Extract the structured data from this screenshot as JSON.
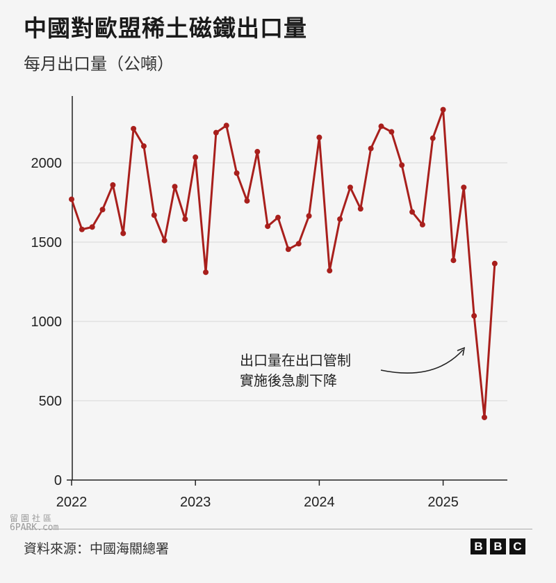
{
  "title": "中國對歐盟稀土磁鐵出口量",
  "subtitle": "每月出口量（公噸）",
  "source": "資料來源：中國海關總署",
  "watermark": {
    "line1": "留園社區",
    "line2": "6PARK.com"
  },
  "logo": {
    "letters": [
      "B",
      "B",
      "C"
    ]
  },
  "colors": {
    "line": "#a81f1c",
    "grid": "#d6d6d6",
    "axis": "#222222"
  },
  "chart_data": {
    "type": "line",
    "ylim": [
      0,
      2450
    ],
    "y_ticks": [
      0,
      500,
      1000,
      1500,
      2000
    ],
    "x_tick_labels": [
      "2022",
      "2023",
      "2024",
      "2025"
    ],
    "grid": true,
    "annotation": {
      "lines": [
        "出口量在出口管制",
        "實施後急劇下降"
      ]
    },
    "series": [
      {
        "x": [
          "2022-01",
          "2022-02",
          "2022-03",
          "2022-04",
          "2022-05",
          "2022-06",
          "2022-07",
          "2022-08",
          "2022-09",
          "2022-10",
          "2022-11",
          "2022-12",
          "2023-01",
          "2023-02",
          "2023-03",
          "2023-04",
          "2023-05",
          "2023-06",
          "2023-07",
          "2023-08",
          "2023-09",
          "2023-10",
          "2023-11",
          "2023-12",
          "2024-01",
          "2024-02",
          "2024-03",
          "2024-04",
          "2024-05",
          "2024-06",
          "2024-07",
          "2024-08",
          "2024-09",
          "2024-10",
          "2024-11",
          "2024-12",
          "2025-01",
          "2025-02",
          "2025-03",
          "2025-04",
          "2025-05",
          "2025-06"
        ],
        "values": [
          1770,
          1580,
          1595,
          1705,
          1860,
          1555,
          2215,
          2105,
          1670,
          1510,
          1850,
          1645,
          2035,
          1310,
          2190,
          2235,
          1935,
          1760,
          2070,
          1600,
          1655,
          1455,
          1490,
          1665,
          2160,
          1320,
          1645,
          1845,
          1710,
          2090,
          2230,
          2195,
          1985,
          1690,
          1610,
          2155,
          2335,
          1385,
          1845,
          1035,
          395,
          1365
        ]
      }
    ]
  }
}
